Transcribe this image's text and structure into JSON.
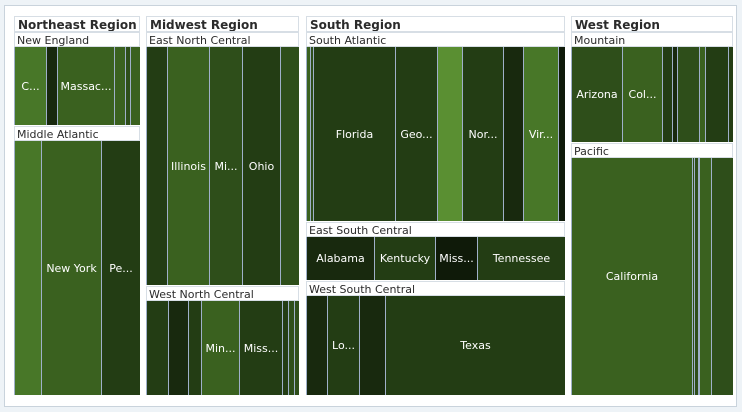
{
  "colors": {
    "c1": "#5a8f32",
    "c2": "#487728",
    "c3": "#3a611f",
    "c4": "#2e4e1a",
    "c5": "#233d14",
    "c6": "#18290e",
    "c7": "#0f1a09"
  },
  "chart_data": {
    "type": "treemap",
    "regions": [
      {
        "label": "Northeast Region",
        "divisions": [
          {
            "label": "New England",
            "states": [
              {
                "label": "C...",
                "value": 3.6,
                "color": "c2"
              },
              {
                "label": "",
                "value": 1.3,
                "color": "c6"
              },
              {
                "label": "Massac...",
                "value": 6.5,
                "color": "c3"
              },
              {
                "label": "",
                "value": 1.3,
                "color": "c3"
              },
              {
                "label": "",
                "value": 0.6,
                "color": "c4"
              },
              {
                "label": "",
                "value": 1.0,
                "color": "c3"
              }
            ]
          },
          {
            "label": "Middle Atlantic",
            "states": [
              {
                "label": "",
                "value": 8.8,
                "color": "c2"
              },
              {
                "label": "New York",
                "value": 19.4,
                "color": "c3"
              },
              {
                "label": "Pe...",
                "value": 12.7,
                "color": "c5"
              }
            ]
          }
        ]
      },
      {
        "label": "Midwest Region",
        "divisions": [
          {
            "label": "East North Central",
            "states": [
              {
                "label": "",
                "value": 6.5,
                "color": "c5"
              },
              {
                "label": "Illinois",
                "value": 12.9,
                "color": "c3"
              },
              {
                "label": "Mi...",
                "value": 9.9,
                "color": "c4"
              },
              {
                "label": "Ohio",
                "value": 11.5,
                "color": "c5"
              },
              {
                "label": "",
                "value": 5.7,
                "color": "c4"
              }
            ]
          },
          {
            "label": "West North Central",
            "states": [
              {
                "label": "",
                "value": 3.0,
                "color": "c5"
              },
              {
                "label": "",
                "value": 2.8,
                "color": "c6"
              },
              {
                "label": "",
                "value": 1.8,
                "color": "c5"
              },
              {
                "label": "Min...",
                "value": 5.3,
                "color": "c3"
              },
              {
                "label": "Miss...",
                "value": 6.0,
                "color": "c5"
              },
              {
                "label": "",
                "value": 0.9,
                "color": "c5"
              },
              {
                "label": "",
                "value": 0.8,
                "color": "c4"
              },
              {
                "label": "",
                "value": 0.7,
                "color": "c4"
              }
            ]
          }
        ]
      },
      {
        "label": "South Region",
        "divisions": [
          {
            "label": "South Atlantic",
            "states": [
              {
                "label": "",
                "value": 0.9,
                "color": "c3"
              },
              {
                "label": "",
                "value": 0.6,
                "color": "c4"
              },
              {
                "label": "Florida",
                "value": 18.8,
                "color": "c5"
              },
              {
                "label": "Geo...",
                "value": 9.7,
                "color": "c5"
              },
              {
                "label": "",
                "value": 5.8,
                "color": "c1"
              },
              {
                "label": "Nor...",
                "value": 9.5,
                "color": "c5"
              },
              {
                "label": "",
                "value": 4.6,
                "color": "c6"
              },
              {
                "label": "Vir...",
                "value": 8.0,
                "color": "c2"
              },
              {
                "label": "",
                "value": 1.8,
                "color": "c7"
              }
            ]
          },
          {
            "label": "East South Central",
            "states": [
              {
                "label": "Alabama",
                "value": 4.8,
                "color": "c6"
              },
              {
                "label": "Kentucky",
                "value": 4.3,
                "color": "c5"
              },
              {
                "label": "Miss...",
                "value": 3.0,
                "color": "c7"
              },
              {
                "label": "Tennessee",
                "value": 6.3,
                "color": "c5"
              }
            ]
          },
          {
            "label": "West South Central",
            "states": [
              {
                "label": "",
                "value": 2.9,
                "color": "c6"
              },
              {
                "label": "Lo...",
                "value": 4.5,
                "color": "c5"
              },
              {
                "label": "",
                "value": 3.7,
                "color": "c6"
              },
              {
                "label": "Texas",
                "value": 25.1,
                "color": "c5"
              }
            ]
          }
        ]
      },
      {
        "label": "West Region",
        "divisions": [
          {
            "label": "Mountain",
            "states": [
              {
                "label": "Arizona",
                "value": 6.4,
                "color": "c4"
              },
              {
                "label": "Col...",
                "value": 5.0,
                "color": "c3"
              },
              {
                "label": "",
                "value": 1.3,
                "color": "c5"
              },
              {
                "label": "",
                "value": 0.6,
                "color": "c6"
              },
              {
                "label": "",
                "value": 2.7,
                "color": "c4"
              },
              {
                "label": "",
                "value": 0.8,
                "color": "c3"
              },
              {
                "label": "",
                "value": 2.9,
                "color": "c5"
              },
              {
                "label": "",
                "value": 0.6,
                "color": "c5"
              }
            ]
          },
          {
            "label": "Pacific",
            "states": [
              {
                "label": "California",
                "value": 37.3,
                "color": "c3"
              },
              {
                "label": "",
                "value": 0.5,
                "color": "c4"
              },
              {
                "label": "",
                "value": 1.2,
                "color": "c4"
              },
              {
                "label": "",
                "value": 0.4,
                "color": "c4"
              },
              {
                "label": "",
                "value": 3.8,
                "color": "c3"
              },
              {
                "label": "",
                "value": 6.7,
                "color": "c4"
              }
            ]
          }
        ]
      }
    ]
  }
}
